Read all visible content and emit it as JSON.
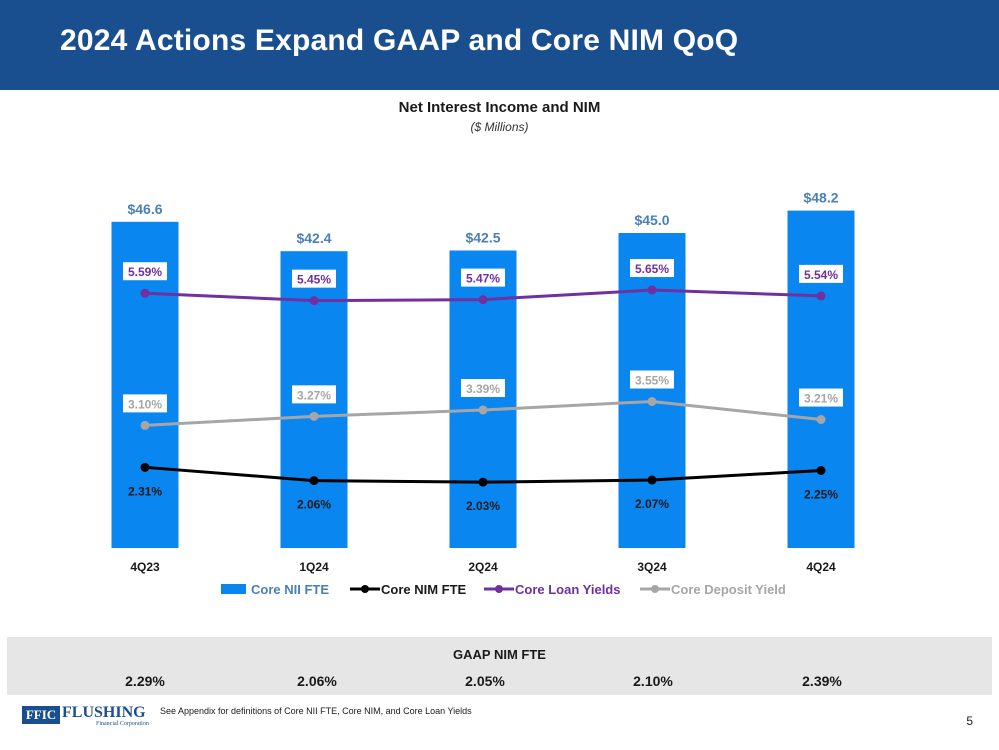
{
  "header": {
    "title": "2024 Actions Expand GAAP and Core NIM QoQ"
  },
  "chart_data": {
    "type": "bar",
    "title": "Net Interest Income and NIM",
    "subtitle": "($ Millions)",
    "categories": [
      "4Q23",
      "1Q24",
      "2Q24",
      "3Q24",
      "4Q24"
    ],
    "bar_series": {
      "name": "Core NII FTE",
      "values": [
        46.6,
        42.4,
        42.5,
        45.0,
        48.2
      ],
      "labels": [
        "$46.6",
        "$42.4",
        "$42.5",
        "$45.0",
        "$48.2"
      ],
      "color": "#0a86f0",
      "ylim": [
        0,
        50
      ]
    },
    "line_series": [
      {
        "name": "Core NIM FTE",
        "values": [
          2.31,
          2.06,
          2.03,
          2.07,
          2.25
        ],
        "labels": [
          "2.31%",
          "2.06%",
          "2.03%",
          "2.07%",
          "2.25%"
        ],
        "color": "#000000",
        "label_position": "below"
      },
      {
        "name": "Core Loan Yields",
        "values": [
          5.59,
          5.45,
          5.47,
          5.65,
          5.54
        ],
        "labels": [
          "5.59%",
          "5.45%",
          "5.47%",
          "5.65%",
          "5.54%"
        ],
        "color": "#7030a0",
        "label_position": "above"
      },
      {
        "name": "Core Deposit Yield",
        "values": [
          3.1,
          3.27,
          3.39,
          3.55,
          3.21
        ],
        "labels": [
          "3.10%",
          "3.27%",
          "3.39%",
          "3.55%",
          "3.21%"
        ],
        "color": "#a6a6a6",
        "label_position": "above"
      }
    ],
    "line_ylim": [
      1.6,
      6.8
    ],
    "legend": [
      "Core NII FTE",
      "Core NIM FTE",
      "Core Loan Yields",
      "Core Deposit Yield"
    ],
    "legend_position": "bottom",
    "grid": false
  },
  "gaap": {
    "title": "GAAP NIM FTE",
    "values": [
      "2.29%",
      "2.06%",
      "2.05%",
      "2.10%",
      "2.39%"
    ]
  },
  "footer": {
    "logo_mark": "FFIC",
    "logo_name": "FLUSHING",
    "logo_sub": "Financial Corporation",
    "note": "See Appendix for definitions of Core NII FTE, Core NIM, and Core Loan Yields",
    "page_number": "5"
  }
}
